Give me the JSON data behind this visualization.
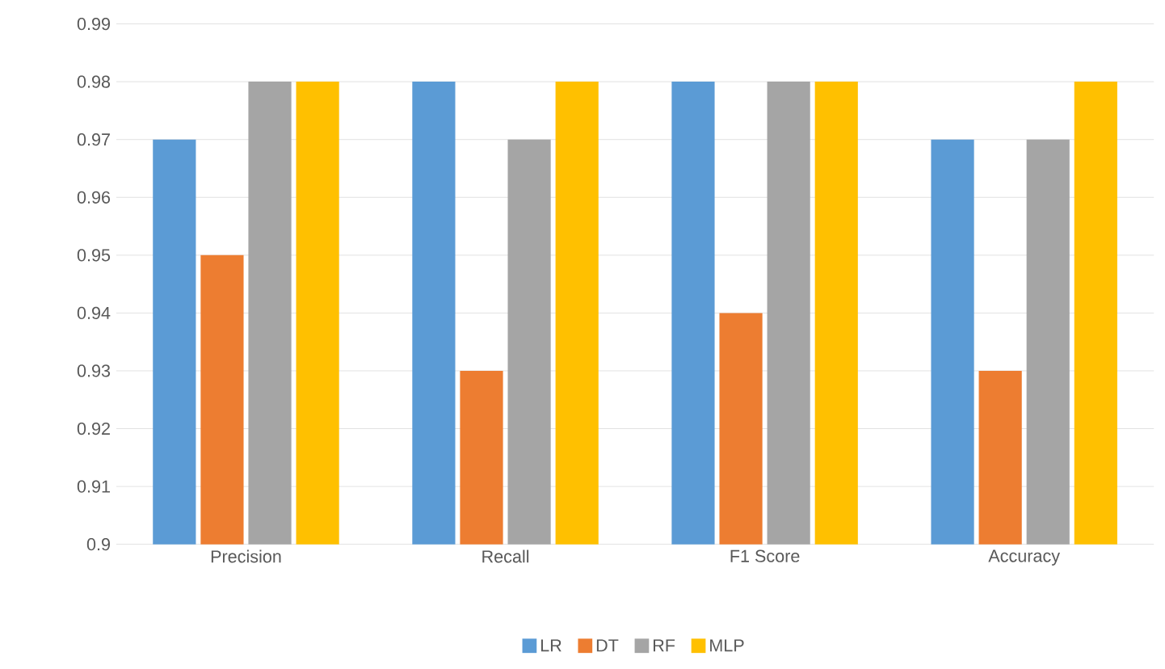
{
  "chart_data": {
    "type": "bar",
    "categories": [
      "Precision",
      "Recall",
      "F1 Score",
      "Accuracy"
    ],
    "series": [
      {
        "name": "LR",
        "color": "#5b9bd5",
        "values": [
          0.97,
          0.98,
          0.98,
          0.97
        ]
      },
      {
        "name": "DT",
        "color": "#ed7d31",
        "values": [
          0.95,
          0.93,
          0.94,
          0.93
        ]
      },
      {
        "name": "RF",
        "color": "#a5a5a5",
        "values": [
          0.98,
          0.97,
          0.98,
          0.97
        ]
      },
      {
        "name": "MLP",
        "color": "#ffc000",
        "values": [
          0.98,
          0.98,
          0.98,
          0.98
        ]
      }
    ],
    "ylim": [
      0.9,
      0.99
    ],
    "yticks": [
      0.9,
      0.91,
      0.92,
      0.93,
      0.94,
      0.95,
      0.96,
      0.97,
      0.98,
      0.99
    ],
    "grid": "y",
    "legend": "bottom"
  }
}
